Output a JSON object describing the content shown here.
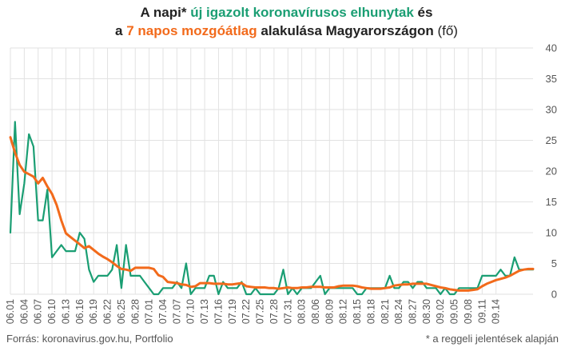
{
  "title": {
    "line1_prefix": "A napi* ",
    "line1_green": "új igazolt koronavírusos elhunytak",
    "line1_suffix": " és",
    "line2_prefix": "a ",
    "line2_orange": "7 napos mozgóátlag",
    "line2_suffix": " alakulása Magyarországon",
    "line2_unit": " (fő)"
  },
  "source": "Forrás: koronavirus.gov.hu, Portfolio",
  "footnote": "* a reggeli jelentések alapján",
  "colors": {
    "daily": "#1a9e73",
    "average": "#f26a1b",
    "grid": "#e2e2e2"
  },
  "chart_data": {
    "type": "line",
    "ylim": [
      0,
      40
    ],
    "yticks": [
      0,
      5,
      10,
      15,
      20,
      25,
      30,
      35,
      40
    ],
    "y_axis_side": "right",
    "grid": true,
    "x_tick_labels": [
      "06.01",
      "06.04",
      "06.07",
      "06.10",
      "06.13",
      "06.16",
      "06.19",
      "06.22",
      "06.25",
      "06.28",
      "07.01",
      "07.04",
      "07.07",
      "07.10",
      "07.13",
      "07.16",
      "07.19",
      "07.22",
      "07.25",
      "07.28",
      "07.31",
      "08.03",
      "08.06",
      "08.09",
      "08.12",
      "08.15",
      "08.18",
      "08.21",
      "08.24",
      "08.27",
      "08.30",
      "09.02",
      "09.05",
      "09.08",
      "09.11",
      "09.14"
    ],
    "series": [
      {
        "key": "daily",
        "values": [
          10,
          28,
          13,
          18,
          26,
          24,
          12,
          12,
          17,
          6,
          7,
          8,
          7,
          7,
          7,
          10,
          9,
          4,
          2,
          3,
          3,
          3,
          4,
          8,
          1,
          8,
          3,
          3,
          3,
          2,
          1,
          0,
          0,
          1,
          1,
          1,
          2,
          1,
          5,
          0,
          1,
          1,
          1,
          3,
          3,
          0,
          2,
          1,
          1,
          1,
          2,
          0,
          0,
          1,
          0,
          0,
          0,
          0,
          1,
          4,
          0,
          1,
          0,
          1,
          1,
          1,
          2,
          3,
          0,
          1,
          1,
          1,
          1,
          1,
          1,
          0,
          0,
          1,
          1,
          1,
          1,
          1,
          3,
          1,
          1,
          2,
          2,
          1,
          2,
          2,
          1,
          1,
          1,
          0,
          1,
          0,
          0,
          1,
          1,
          1,
          1,
          1,
          3,
          3,
          3,
          3,
          4,
          3,
          3,
          6,
          4,
          4,
          4,
          4
        ]
      },
      {
        "key": "average",
        "values": [
          25.5,
          23,
          21,
          19.9,
          19.5,
          19.1,
          18,
          18.9,
          17.5,
          16.3,
          14.5,
          12,
          9.9,
          9.3,
          8.7,
          8.1,
          7.5,
          7.8,
          7.2,
          6.6,
          6.1,
          5.7,
          5.2,
          4.6,
          4.1,
          4,
          3.8,
          4.3,
          4.3,
          4.3,
          4.3,
          4.1,
          3.1,
          2.8,
          2,
          1.9,
          1.8,
          1.6,
          1.5,
          1.2,
          1.3,
          1.8,
          1.8,
          1.8,
          1.7,
          1.7,
          1.7,
          1.6,
          1.6,
          1.7,
          1.8,
          1.3,
          1.2,
          1.1,
          1.1,
          1.1,
          1,
          1,
          0.9,
          1,
          1.1,
          1,
          1,
          1.1,
          1.1,
          1.2,
          1.2,
          1.2,
          1.1,
          1.1,
          1.1,
          1.3,
          1.4,
          1.4,
          1.4,
          1.3,
          1.1,
          1,
          0.9,
          0.9,
          0.9,
          1,
          1.1,
          1.4,
          1.5,
          1.6,
          1.6,
          1.7,
          1.7,
          1.7,
          1.7,
          1.5,
          1.3,
          1.1,
          1,
          0.8,
          0.7,
          0.6,
          0.6,
          0.6,
          0.7,
          0.8,
          1.3,
          1.7,
          2,
          2.3,
          2.5,
          2.7,
          3,
          3.4,
          3.8,
          4,
          4.1,
          4.1
        ]
      }
    ]
  }
}
